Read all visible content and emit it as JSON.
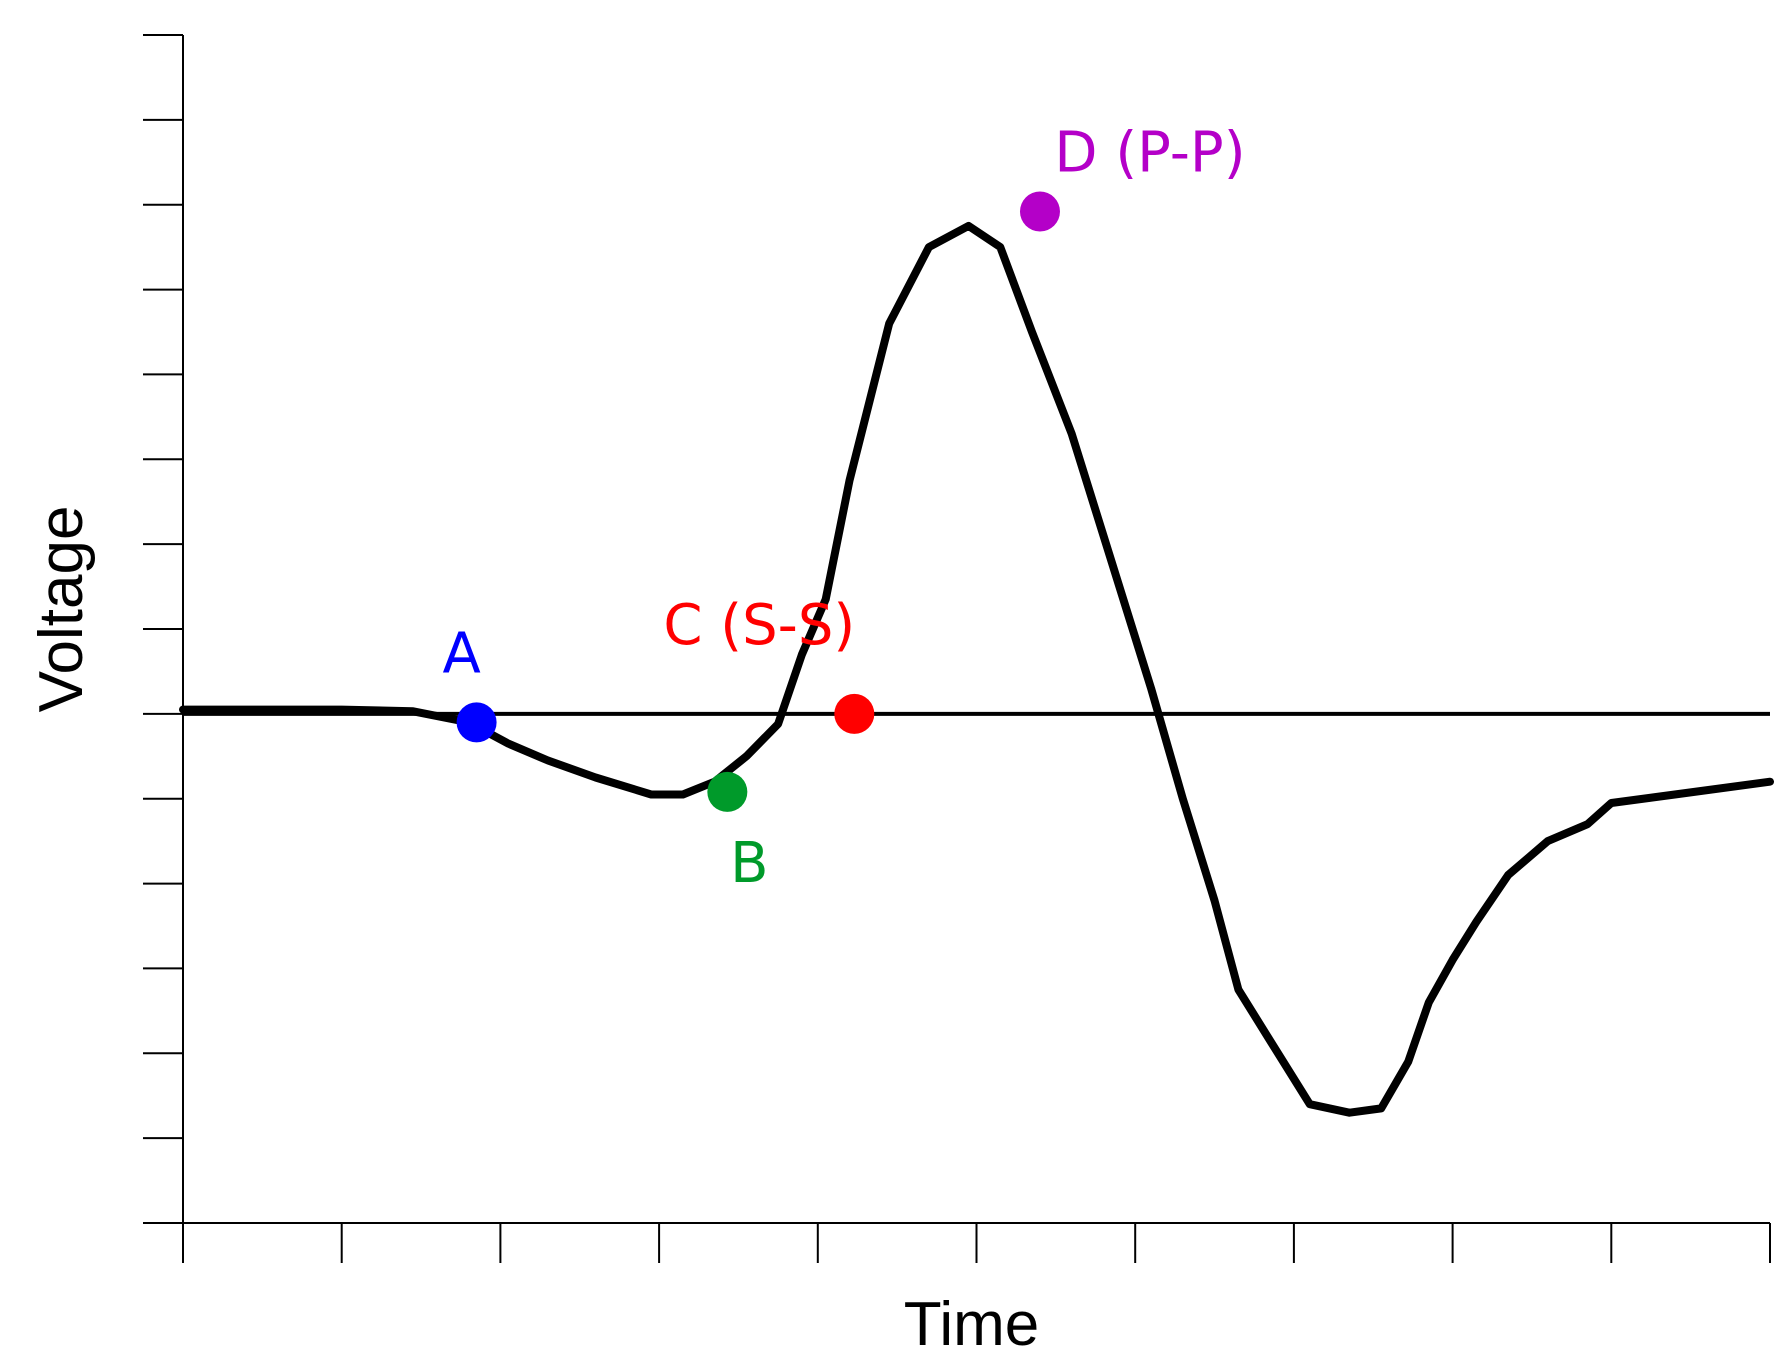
{
  "chart_data": {
    "type": "line",
    "title": "",
    "xlabel": "Time",
    "ylabel": "Voltage",
    "xlim": [
      0,
      10
    ],
    "ylim": [
      -6,
      8
    ],
    "x_tick_count": 11,
    "y_tick_count": 15,
    "tick_labels_shown": false,
    "grid": false,
    "zero_line": true,
    "series": [
      {
        "color": "#000000",
        "x": [
          0,
          0.5,
          1.0,
          1.45,
          1.8,
          2.05,
          2.3,
          2.6,
          2.95,
          3.15,
          3.35,
          3.55,
          3.75,
          3.9,
          4.05,
          4.2,
          4.45,
          4.7,
          4.95,
          5.15,
          5.35,
          5.6,
          5.85,
          6.1,
          6.3,
          6.5,
          6.65,
          6.85,
          7.1,
          7.35,
          7.55,
          7.72,
          7.85,
          8.0,
          8.15,
          8.35,
          8.6,
          8.85,
          9.0,
          9.4,
          10.0
        ],
        "y": [
          0.05,
          0.05,
          0.05,
          0.03,
          -0.1,
          -0.35,
          -0.55,
          -0.75,
          -0.95,
          -0.95,
          -0.8,
          -0.5,
          -0.12,
          0.7,
          1.35,
          2.75,
          4.6,
          5.5,
          5.75,
          5.5,
          4.5,
          3.3,
          1.8,
          0.3,
          -1.0,
          -2.2,
          -3.25,
          -3.85,
          -4.6,
          -4.7,
          -4.65,
          -4.1,
          -3.4,
          -2.9,
          -2.45,
          -1.9,
          -1.5,
          -1.3,
          -1.05,
          -0.95,
          -0.8
        ]
      }
    ],
    "annotations": [
      {
        "label": "A",
        "x": 1.85,
        "y": -0.1,
        "color": "#0000ff"
      },
      {
        "label": "B",
        "x": 3.43,
        "y": -0.92,
        "color": "#009a2a"
      },
      {
        "label": "C (S-S)",
        "x": 4.23,
        "y": 0.0,
        "color": "#ff0000"
      },
      {
        "label": "D (P-P)",
        "x": 5.4,
        "y": 5.92,
        "color": "#b400c8"
      }
    ]
  }
}
